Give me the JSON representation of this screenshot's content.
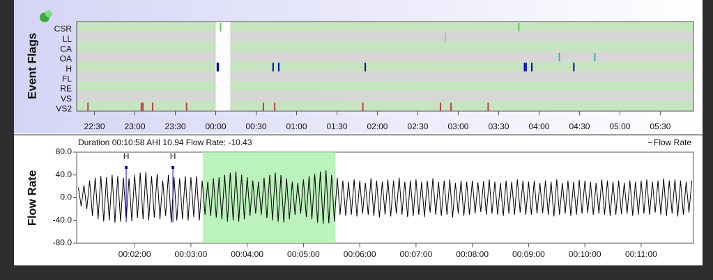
{
  "chart_data": [
    {
      "type": "flags",
      "y_label": "Event Flags",
      "series": [
        {
          "name": "CSR",
          "color": "#5cc85c",
          "x": [
            24.06,
            27.75
          ]
        },
        {
          "name": "LL",
          "color": "#a0c8a0",
          "x": [
            26.84
          ]
        },
        {
          "name": "CA",
          "color": "#40b0b0",
          "x": []
        },
        {
          "name": "OA",
          "color": "#40b0b0",
          "x": [
            28.25,
            28.69
          ]
        },
        {
          "name": "H",
          "color": "#0000c0",
          "x": [
            24.02,
            24.03,
            24.71,
            24.78,
            25.85,
            27.82,
            27.84,
            27.91,
            28.43
          ]
        },
        {
          "name": "FL",
          "color": "#808080",
          "x": []
        },
        {
          "name": "RE",
          "color": "#808080",
          "x": []
        },
        {
          "name": "VS",
          "color": "#c04040",
          "x": []
        },
        {
          "name": "VS2",
          "color": "#c04040",
          "x": [
            22.42,
            23.08,
            23.1,
            23.22,
            23.64,
            24.59,
            24.73,
            25.82,
            26.78,
            26.91,
            27.37
          ]
        }
      ],
      "xlim": [
        22.28,
        29.91
      ],
      "xticks": [
        {
          "value": 22.5,
          "label": "22:30"
        },
        {
          "value": 23,
          "label": "23:00"
        },
        {
          "value": 23.5,
          "label": "23:30"
        },
        {
          "value": 24,
          "label": "00:00"
        },
        {
          "value": 24.5,
          "label": "00:30"
        },
        {
          "value": 25,
          "label": "01:00"
        },
        {
          "value": 25.5,
          "label": "01:30"
        },
        {
          "value": 26,
          "label": "02:00"
        },
        {
          "value": 26.5,
          "label": "02:30"
        },
        {
          "value": 27,
          "label": "03:00"
        },
        {
          "value": 27.5,
          "label": "03:30"
        },
        {
          "value": 28,
          "label": "04:00"
        },
        {
          "value": 28.5,
          "label": "04:30"
        },
        {
          "value": 29,
          "label": "05:00"
        },
        {
          "value": 29.5,
          "label": "05:30"
        }
      ],
      "selection": [
        24.0,
        24.18
      ]
    },
    {
      "type": "line",
      "y_label": "Flow Rate",
      "title": "Duration 00:10:58 AHI 10.94 Flow Rate: -10.43",
      "series": [
        {
          "name": "Flow Rate",
          "color": "#000000",
          "x": [
            1,
            1.05,
            1.1,
            1.15,
            1.2,
            1.25,
            1.3,
            1.35,
            1.4,
            1.45,
            1.5,
            1.55,
            1.6,
            1.65,
            1.7,
            1.75,
            1.8,
            1.85,
            1.9,
            1.95,
            2,
            2.05,
            2.1,
            2.15,
            2.2,
            2.25,
            2.3,
            2.35,
            2.4,
            2.45,
            2.5,
            2.55,
            2.6,
            2.65,
            2.7,
            2.75,
            2.8,
            2.85,
            2.9,
            2.95,
            3,
            3.05,
            3.1,
            3.15,
            3.2,
            3.25,
            3.3,
            3.35,
            3.4,
            3.45,
            3.5,
            3.55,
            3.6,
            3.65,
            3.7,
            3.75,
            3.8,
            3.85,
            3.9,
            3.95,
            4,
            4.05,
            4.1,
            4.15,
            4.2,
            4.25,
            4.3,
            4.35,
            4.4,
            4.45,
            4.5,
            4.55,
            4.6,
            4.65,
            4.7,
            4.75,
            4.8,
            4.85,
            4.9,
            4.95,
            5,
            5.05,
            5.1,
            5.15,
            5.2,
            5.25,
            5.3,
            5.35,
            5.4,
            5.45,
            5.5,
            5.55,
            5.6,
            5.65,
            5.7,
            5.75,
            5.8,
            5.85,
            5.9,
            5.95,
            6,
            6.05,
            6.1,
            6.15,
            6.2,
            6.25,
            6.3,
            6.35,
            6.4,
            6.45,
            6.5,
            6.55,
            6.6,
            6.65,
            6.7,
            6.75,
            6.8,
            6.85,
            6.9,
            6.95,
            7,
            7.05,
            7.1,
            7.15,
            7.2,
            7.25,
            7.3,
            7.35,
            7.4,
            7.45,
            7.5,
            7.55,
            7.6,
            7.65,
            7.7,
            7.75,
            7.8,
            7.85,
            7.9,
            7.95,
            8,
            8.05,
            8.1,
            8.15,
            8.2,
            8.25,
            8.3,
            8.35,
            8.4,
            8.45,
            8.5,
            8.55,
            8.6,
            8.65,
            8.7,
            8.75,
            8.8,
            8.85,
            8.9,
            8.95,
            9,
            9.05,
            9.1,
            9.15,
            9.2,
            9.25,
            9.3,
            9.35,
            9.4,
            9.45,
            9.5,
            9.55,
            9.6,
            9.65,
            9.7,
            9.75,
            9.8,
            9.85,
            9.9,
            9.95,
            10,
            10.05,
            10.1,
            10.15,
            10.2,
            10.25,
            10.3,
            10.35,
            10.4,
            10.45,
            10.5,
            10.55,
            10.6,
            10.65,
            10.7,
            10.75,
            10.8,
            10.85,
            10.9,
            10.95,
            11,
            11.05,
            11.1,
            11.15,
            11.2,
            11.25,
            11.3,
            11.35,
            11.4,
            11.45,
            11.5,
            11.55,
            11.6,
            11.65,
            11.7,
            11.75,
            11.8,
            11.85,
            11.9
          ],
          "values": [
            18,
            -15,
            22,
            -20,
            30,
            -32,
            35,
            -38,
            38,
            -42,
            36,
            -40,
            40,
            -44,
            38,
            -42,
            35,
            -38,
            34,
            -41,
            40,
            -36,
            44,
            -38,
            45,
            -40,
            38,
            -35,
            42,
            -38,
            30,
            -32,
            40,
            -44,
            36,
            -40,
            34,
            -38,
            38,
            -40,
            36,
            -34,
            38,
            -40,
            30,
            -30,
            28,
            -32,
            34,
            -35,
            36,
            -38,
            40,
            -42,
            44,
            -40,
            46,
            -42,
            40,
            -38,
            36,
            -32,
            30,
            -28,
            28,
            -30,
            35,
            -36,
            40,
            -40,
            44,
            -42,
            40,
            -44,
            34,
            -38,
            28,
            -30,
            26,
            -28,
            32,
            -34,
            38,
            -38,
            42,
            -44,
            46,
            -46,
            48,
            -45,
            40,
            -42,
            35,
            -30,
            30,
            -32,
            28,
            -30,
            32,
            -33,
            30,
            -28,
            26,
            -30,
            34,
            -32,
            30,
            -35,
            28,
            -30,
            32,
            -33,
            30,
            -28,
            35,
            -30,
            28,
            -34,
            30,
            -32,
            32,
            -30,
            28,
            -34,
            30,
            -26,
            34,
            -30,
            28,
            -32,
            30,
            -30,
            32,
            -35,
            26,
            -28,
            30,
            -32,
            28,
            -30,
            30,
            -28,
            27,
            -25,
            29,
            -30,
            32,
            -28,
            28,
            -30,
            26,
            -32,
            30,
            -28,
            28,
            -30,
            32,
            -26,
            30,
            -30,
            28,
            -30,
            30,
            -28,
            26,
            -27,
            30,
            -30,
            28,
            -33,
            32,
            -30,
            26,
            -28,
            30,
            -32,
            28,
            -30,
            31,
            -28,
            30,
            -27,
            28,
            -30,
            26,
            -28,
            32,
            -30,
            30,
            -32,
            28,
            -30,
            30,
            -29,
            26,
            -28,
            30,
            -32,
            28,
            -30,
            30,
            -28,
            32,
            -30,
            28,
            -26,
            30,
            -30,
            34,
            -32,
            30,
            -28,
            32,
            -33,
            30,
            -30,
            28,
            -26,
            30
          ]
        }
      ],
      "xlim": [
        0.97,
        11.93
      ],
      "ylim": [
        -80,
        80
      ],
      "yticks": [
        {
          "value": 80,
          "label": "80.0"
        },
        {
          "value": 40,
          "label": "40.0"
        },
        {
          "value": 0,
          "label": "0.0"
        },
        {
          "value": -40,
          "label": "-40.0"
        },
        {
          "value": -80,
          "label": "-80.0"
        }
      ],
      "xticks": [
        {
          "value": 2,
          "label": "00:02:00"
        },
        {
          "value": 3,
          "label": "00:03:00"
        },
        {
          "value": 4,
          "label": "00:04:00"
        },
        {
          "value": 5,
          "label": "00:05:00"
        },
        {
          "value": 6,
          "label": "00:06:00"
        },
        {
          "value": 7,
          "label": "00:07:00"
        },
        {
          "value": 8,
          "label": "00:08:00"
        },
        {
          "value": 9,
          "label": "00:09:00"
        },
        {
          "value": 10,
          "label": "00:10:00"
        },
        {
          "value": 11,
          "label": "00:11:00"
        }
      ],
      "highlight": [
        3.21,
        5.57
      ],
      "events": [
        {
          "label": "H",
          "x": 1.85
        },
        {
          "label": "H",
          "x": 2.68
        }
      ]
    }
  ]
}
